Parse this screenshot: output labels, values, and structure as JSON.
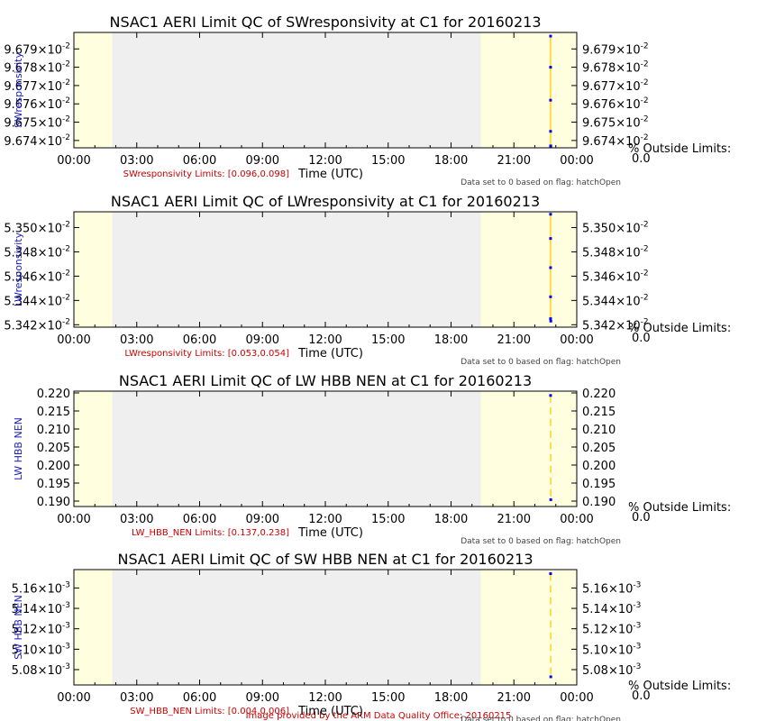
{
  "footer": "Image provided by the ARM Data Quality Office: 20160215",
  "colors": {
    "night_shade": "#ffffe0",
    "day_shade": "#efefef",
    "data_line": "#ffd21a",
    "data_point": "#0000ff",
    "ylabel_text": "#1a1ab8",
    "limits_text": "#cc0000"
  },
  "chart_data": [
    {
      "type": "line",
      "title": "NSAC1 AERI Limit QC of SWresponsivity at C1 for 20160213",
      "ylabel": "SWresponsivity",
      "xlabel": "Time (UTC)",
      "limits_label": "SWresponsivity Limits: [0.096,0.098]",
      "note": "Data set to 0 based on flag: hatchOpen",
      "outside_label": "% Outside Limits:",
      "outside_value": "0.0",
      "x_ticks": [
        "00:00",
        "03:00",
        "06:00",
        "09:00",
        "12:00",
        "15:00",
        "18:00",
        "21:00",
        "00:00"
      ],
      "xlim": [
        0,
        24
      ],
      "ylim": [
        0.096736,
        0.096799
      ],
      "y_ticks": [
        {
          "value": 0.09674,
          "base": "9.674×10",
          "exp": "-2"
        },
        {
          "value": 0.09675,
          "base": "9.675×10",
          "exp": "-2"
        },
        {
          "value": 0.09676,
          "base": "9.676×10",
          "exp": "-2"
        },
        {
          "value": 0.09677,
          "base": "9.677×10",
          "exp": "-2"
        },
        {
          "value": 0.09678,
          "base": "9.678×10",
          "exp": "-2"
        },
        {
          "value": 0.09679,
          "base": "9.679×10",
          "exp": "-2"
        }
      ],
      "shading": {
        "night_end": 1.83,
        "day_end": 19.42
      },
      "series": [
        {
          "x": [
            22.75,
            22.75,
            22.75,
            22.75,
            22.75,
            22.76
          ],
          "y": [
            0.096797,
            0.09678,
            0.096762,
            0.096745,
            0.096737,
            0.096737
          ]
        }
      ]
    },
    {
      "type": "line",
      "title": "NSAC1 AERI Limit QC of LWresponsivity at C1 for 20160213",
      "ylabel": "LWresponsivity",
      "xlabel": "Time (UTC)",
      "limits_label": "LWresponsivity Limits: [0.053,0.054]",
      "note": "Data set to 0 based on flag: hatchOpen",
      "outside_label": "% Outside Limits:",
      "outside_value": "0.0",
      "x_ticks": [
        "00:00",
        "03:00",
        "06:00",
        "09:00",
        "12:00",
        "15:00",
        "18:00",
        "21:00",
        "00:00"
      ],
      "xlim": [
        0,
        24
      ],
      "ylim": [
        0.053418,
        0.053513
      ],
      "y_ticks": [
        {
          "value": 0.05342,
          "base": "5.342×10",
          "exp": "-2"
        },
        {
          "value": 0.05344,
          "base": "5.344×10",
          "exp": "-2"
        },
        {
          "value": 0.05346,
          "base": "5.346×10",
          "exp": "-2"
        },
        {
          "value": 0.05348,
          "base": "5.348×10",
          "exp": "-2"
        },
        {
          "value": 0.0535,
          "base": "5.350×10",
          "exp": "-2"
        }
      ],
      "shading": {
        "night_end": 1.83,
        "day_end": 19.42
      },
      "series": [
        {
          "x": [
            22.75,
            22.75,
            22.75,
            22.75,
            22.75,
            22.76
          ],
          "y": [
            0.053511,
            0.053491,
            0.053467,
            0.053443,
            0.053425,
            0.053423
          ]
        }
      ]
    },
    {
      "type": "line",
      "title": "NSAC1 AERI Limit QC of LW HBB NEN at C1 for 20160213",
      "ylabel": "LW HBB NEN",
      "xlabel": "Time (UTC)",
      "limits_label": "LW_HBB_NEN Limits: [0.137,0.238]",
      "note": "Data set to 0 based on flag: hatchOpen",
      "outside_label": "% Outside Limits:",
      "outside_value": "0.0",
      "x_ticks": [
        "00:00",
        "03:00",
        "06:00",
        "09:00",
        "12:00",
        "15:00",
        "18:00",
        "21:00",
        "00:00"
      ],
      "xlim": [
        0,
        24
      ],
      "ylim": [
        0.1885,
        0.2205
      ],
      "y_ticks": [
        {
          "value": 0.19,
          "base": "0.190",
          "exp": ""
        },
        {
          "value": 0.195,
          "base": "0.195",
          "exp": ""
        },
        {
          "value": 0.2,
          "base": "0.200",
          "exp": ""
        },
        {
          "value": 0.205,
          "base": "0.205",
          "exp": ""
        },
        {
          "value": 0.21,
          "base": "0.210",
          "exp": ""
        },
        {
          "value": 0.215,
          "base": "0.215",
          "exp": ""
        },
        {
          "value": 0.22,
          "base": "0.220",
          "exp": ""
        }
      ],
      "shading": {
        "night_end": 1.83,
        "day_end": 19.42
      },
      "series": [
        {
          "x": [
            22.75,
            22.76
          ],
          "y": [
            0.2193,
            0.1904
          ]
        }
      ]
    },
    {
      "type": "line",
      "title": "NSAC1 AERI Limit QC of SW HBB NEN at C1 for 20160213",
      "ylabel": "SW HBB NEN",
      "xlabel": "Time (UTC)",
      "limits_label": "SW_HBB_NEN Limits: [0.004,0.006]",
      "note": "Data set to 0 based on flag: hatchOpen",
      "outside_label": "% Outside Limits:",
      "outside_value": "0.0",
      "x_ticks": [
        "00:00",
        "03:00",
        "06:00",
        "09:00",
        "12:00",
        "15:00",
        "18:00",
        "21:00",
        "00:00"
      ],
      "xlim": [
        0,
        24
      ],
      "ylim": [
        0.005065,
        0.005178
      ],
      "y_ticks": [
        {
          "value": 0.00508,
          "base": "5.08×10",
          "exp": "-3"
        },
        {
          "value": 0.0051,
          "base": "5.10×10",
          "exp": "-3"
        },
        {
          "value": 0.00512,
          "base": "5.12×10",
          "exp": "-3"
        },
        {
          "value": 0.00514,
          "base": "5.14×10",
          "exp": "-3"
        },
        {
          "value": 0.00516,
          "base": "5.16×10",
          "exp": "-3"
        }
      ],
      "shading": {
        "night_end": 1.83,
        "day_end": 19.42
      },
      "series": [
        {
          "x": [
            22.75,
            22.76
          ],
          "y": [
            0.005174,
            0.005073
          ]
        }
      ]
    }
  ]
}
